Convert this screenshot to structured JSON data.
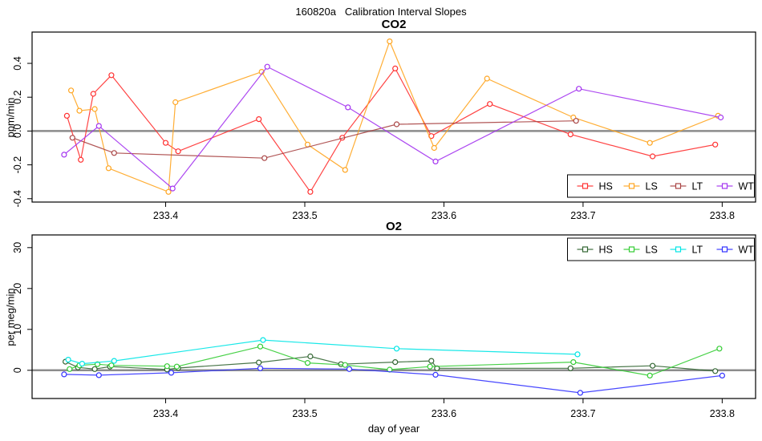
{
  "page": {
    "title": "160820a   Calibration Interval Slopes"
  },
  "chart_data": [
    {
      "type": "line",
      "title": "CO2",
      "ylabel": "ppm/min",
      "xlabel": "",
      "xlim": [
        233.304,
        233.824
      ],
      "ylim": [
        -0.42,
        0.585
      ],
      "xticks": [
        233.4,
        233.5,
        233.6,
        233.7,
        233.8
      ],
      "xtick_labels": [
        "233.4",
        "233.5",
        "233.6",
        "233.7",
        "233.8"
      ],
      "yticks": [
        -0.4,
        -0.2,
        0.0,
        0.2,
        0.4
      ],
      "ytick_labels": [
        "-0.4",
        "-0.2",
        "0.0",
        "0.2",
        "0.4"
      ],
      "grid": false,
      "zero_line": true,
      "zero_line_color": "#8C8C8C",
      "legend_position": "bottom-right",
      "series": [
        {
          "name": "HS",
          "color": "#FF3030",
          "points": [
            [
              233.329,
              0.09
            ],
            [
              233.339,
              -0.17
            ],
            [
              233.348,
              0.22
            ],
            [
              233.361,
              0.33
            ],
            [
              233.4,
              -0.07
            ],
            [
              233.409,
              -0.12
            ],
            [
              233.467,
              0.07
            ],
            [
              233.504,
              -0.36
            ],
            [
              233.527,
              -0.04
            ],
            [
              233.565,
              0.37
            ],
            [
              233.591,
              -0.03
            ],
            [
              233.633,
              0.16
            ],
            [
              233.691,
              -0.02
            ],
            [
              233.75,
              -0.15
            ],
            [
              233.795,
              -0.08
            ]
          ]
        },
        {
          "name": "LS",
          "color": "#FFA520",
          "points": [
            [
              233.332,
              0.24
            ],
            [
              233.338,
              0.12
            ],
            [
              233.349,
              0.13
            ],
            [
              233.359,
              -0.22
            ],
            [
              233.402,
              -0.36
            ],
            [
              233.407,
              0.17
            ],
            [
              233.469,
              0.35
            ],
            [
              233.502,
              -0.08
            ],
            [
              233.529,
              -0.23
            ],
            [
              233.561,
              0.53
            ],
            [
              233.593,
              -0.1
            ],
            [
              233.631,
              0.31
            ],
            [
              233.693,
              0.08
            ],
            [
              233.748,
              -0.07
            ],
            [
              233.797,
              0.09
            ]
          ]
        },
        {
          "name": "LT",
          "color": "#A94444",
          "points": [
            [
              233.333,
              -0.04
            ],
            [
              233.363,
              -0.13
            ],
            [
              233.471,
              -0.16
            ],
            [
              233.566,
              0.04
            ],
            [
              233.695,
              0.06
            ]
          ]
        },
        {
          "name": "WT",
          "color": "#A435F0",
          "points": [
            [
              233.327,
              -0.14
            ],
            [
              233.352,
              0.03
            ],
            [
              233.405,
              -0.34
            ],
            [
              233.473,
              0.38
            ],
            [
              233.531,
              0.14
            ],
            [
              233.594,
              -0.18
            ],
            [
              233.697,
              0.25
            ],
            [
              233.799,
              0.08
            ]
          ]
        }
      ]
    },
    {
      "type": "line",
      "title": "O2",
      "ylabel": "per meg/min",
      "xlabel": "day of year",
      "xlim": [
        233.304,
        233.824
      ],
      "ylim": [
        -6.9,
        33.1
      ],
      "xticks": [
        233.4,
        233.5,
        233.6,
        233.7,
        233.8
      ],
      "xtick_labels": [
        "233.4",
        "233.5",
        "233.6",
        "233.7",
        "233.8"
      ],
      "yticks": [
        0,
        10,
        20,
        30
      ],
      "ytick_labels": [
        "0",
        "10",
        "20",
        "30"
      ],
      "grid": false,
      "zero_line": true,
      "zero_line_color": "#8C8C8C",
      "legend_position": "top-right",
      "series": [
        {
          "name": "HS",
          "color": "#336633",
          "points": [
            [
              233.328,
              2.1
            ],
            [
              233.337,
              0.7
            ],
            [
              233.349,
              0.3
            ],
            [
              233.36,
              0.9
            ],
            [
              233.401,
              0.2
            ],
            [
              233.409,
              0.55
            ],
            [
              233.467,
              1.9
            ],
            [
              233.504,
              3.4
            ],
            [
              233.526,
              1.5
            ],
            [
              233.565,
              2.0
            ],
            [
              233.591,
              2.3
            ],
            [
              233.595,
              0.5
            ],
            [
              233.691,
              0.5
            ],
            [
              233.75,
              1.1
            ],
            [
              233.795,
              -0.2
            ]
          ]
        },
        {
          "name": "LS",
          "color": "#33CC33",
          "points": [
            [
              233.331,
              0.3
            ],
            [
              233.338,
              1.2
            ],
            [
              233.351,
              1.5
            ],
            [
              233.361,
              1.2
            ],
            [
              233.401,
              1.0
            ],
            [
              233.408,
              0.9
            ],
            [
              233.468,
              5.8
            ],
            [
              233.502,
              1.8
            ],
            [
              233.529,
              1.3
            ],
            [
              233.561,
              0.15
            ],
            [
              233.59,
              0.9
            ],
            [
              233.693,
              2.0
            ],
            [
              233.748,
              -1.3
            ],
            [
              233.798,
              5.3
            ]
          ]
        },
        {
          "name": "LT",
          "color": "#00E5E5",
          "points": [
            [
              233.33,
              2.6
            ],
            [
              233.34,
              1.6
            ],
            [
              233.363,
              2.3
            ],
            [
              233.47,
              7.4
            ],
            [
              233.566,
              5.3
            ],
            [
              233.696,
              3.9
            ]
          ]
        },
        {
          "name": "WT",
          "color": "#3333FF",
          "points": [
            [
              233.327,
              -1.0
            ],
            [
              233.352,
              -1.2
            ],
            [
              233.404,
              -0.6
            ],
            [
              233.468,
              0.5
            ],
            [
              233.532,
              0.3
            ],
            [
              233.594,
              -1.1
            ],
            [
              233.698,
              -5.5
            ],
            [
              233.8,
              -1.3
            ]
          ]
        }
      ]
    }
  ]
}
